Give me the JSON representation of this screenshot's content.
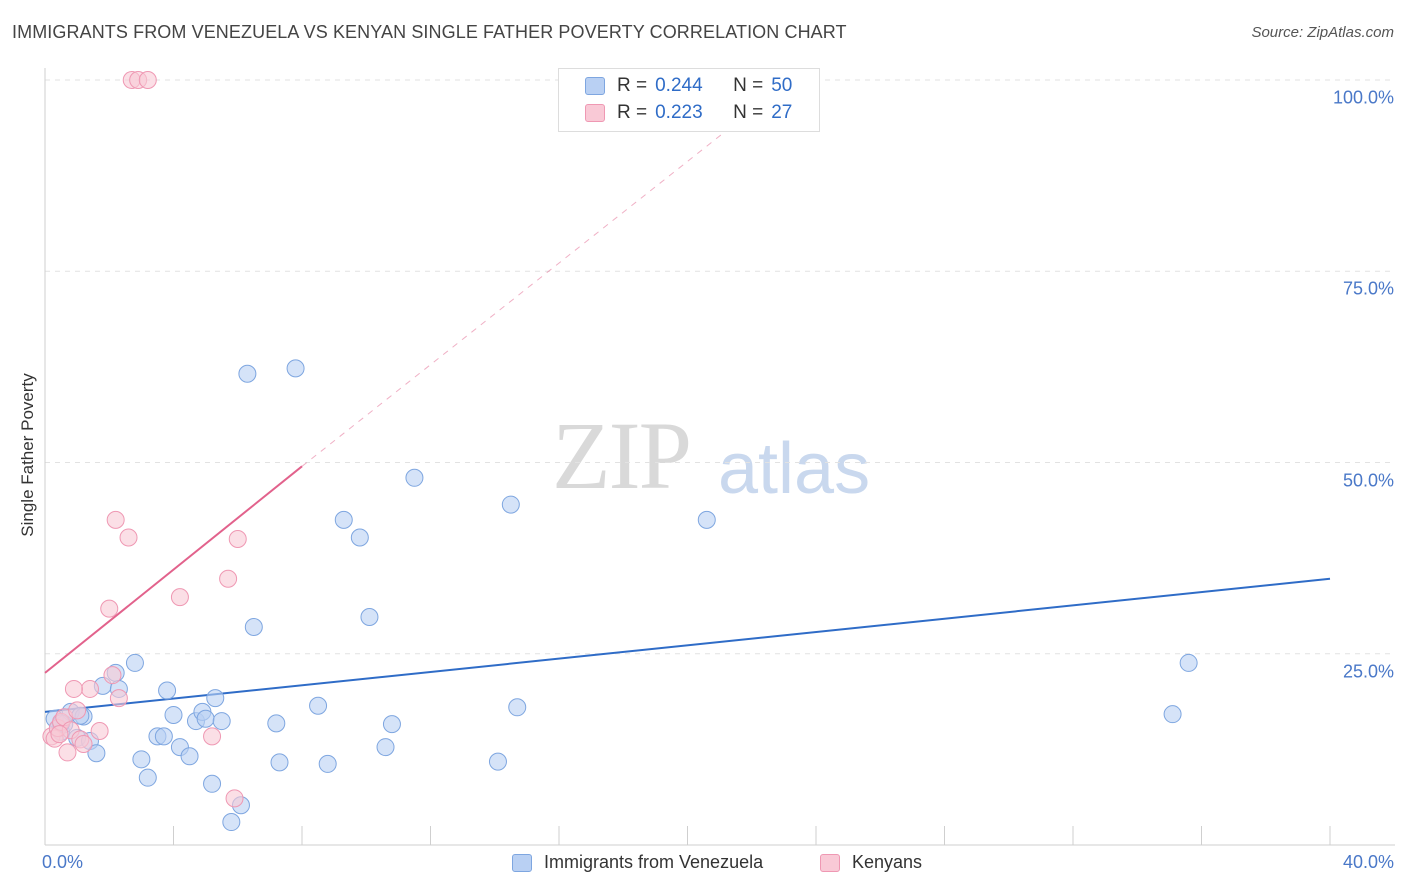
{
  "title": "IMMIGRANTS FROM VENEZUELA VS KENYAN SINGLE FATHER POVERTY CORRELATION CHART",
  "source": "Source: ZipAtlas.com",
  "watermark": {
    "zip": "ZIP",
    "atlas": "atlas"
  },
  "legend": {
    "rows": [
      {
        "r_label": "R =",
        "r_value": "0.244",
        "n_label": "N =",
        "n_value": "50"
      },
      {
        "r_label": "R =",
        "r_value": "0.223",
        "n_label": "N =",
        "n_value": "27"
      }
    ]
  },
  "colors": {
    "blue": "#2f6cc7",
    "blue_fill": "#b9d0f3",
    "pink": "#e2628c",
    "pink_fill": "#f9c9d6"
  },
  "chart_data": {
    "type": "scatter",
    "title": "IMMIGRANTS FROM VENEZUELA VS KENYAN SINGLE FATHER POVERTY CORRELATION CHART",
    "xlabel": "",
    "ylabel": "Single Father Poverty",
    "xlim": [
      0,
      40
    ],
    "ylim": [
      0,
      100
    ],
    "x_tick_labels": [
      "0.0%",
      "40.0%"
    ],
    "y_tick_labels": [
      "25.0%",
      "50.0%",
      "75.0%",
      "100.0%"
    ],
    "y_ticks": [
      25,
      50,
      75,
      100
    ],
    "grid": true,
    "series": [
      {
        "name": "Immigrants from Venezuela",
        "color": "#2f6cc7",
        "points": [
          [
            0.3,
            16.5
          ],
          [
            0.4,
            15.2
          ],
          [
            0.5,
            14.8
          ],
          [
            0.6,
            15.8
          ],
          [
            0.8,
            17.4
          ],
          [
            1.0,
            14.0
          ],
          [
            1.2,
            16.8
          ],
          [
            1.4,
            13.6
          ],
          [
            1.6,
            12.0
          ],
          [
            1.8,
            20.8
          ],
          [
            2.2,
            22.5
          ],
          [
            2.3,
            20.4
          ],
          [
            2.8,
            23.8
          ],
          [
            3.0,
            11.2
          ],
          [
            3.2,
            8.8
          ],
          [
            3.5,
            14.2
          ],
          [
            3.7,
            14.2
          ],
          [
            3.8,
            20.2
          ],
          [
            4.0,
            17.0
          ],
          [
            4.2,
            12.8
          ],
          [
            4.5,
            11.6
          ],
          [
            4.7,
            16.2
          ],
          [
            4.9,
            17.4
          ],
          [
            5.0,
            16.5
          ],
          [
            5.2,
            8.0
          ],
          [
            5.3,
            19.2
          ],
          [
            5.5,
            16.2
          ],
          [
            5.8,
            3.0
          ],
          [
            6.1,
            5.2
          ],
          [
            6.3,
            61.6
          ],
          [
            6.5,
            28.5
          ],
          [
            7.2,
            15.9
          ],
          [
            7.3,
            10.8
          ],
          [
            7.8,
            62.3
          ],
          [
            8.5,
            18.2
          ],
          [
            8.8,
            10.6
          ],
          [
            9.3,
            42.5
          ],
          [
            9.8,
            40.2
          ],
          [
            10.1,
            29.8
          ],
          [
            10.6,
            12.8
          ],
          [
            10.8,
            15.8
          ],
          [
            11.5,
            48.0
          ],
          [
            14.1,
            10.9
          ],
          [
            14.5,
            44.5
          ],
          [
            14.7,
            18.0
          ],
          [
            20.6,
            42.5
          ],
          [
            35.1,
            17.1
          ],
          [
            35.6,
            23.8
          ],
          [
            0.5,
            15.9
          ],
          [
            1.1,
            16.9
          ]
        ]
      },
      {
        "name": "Kenyans",
        "color": "#e2628c",
        "points": [
          [
            0.2,
            14.2
          ],
          [
            0.3,
            13.9
          ],
          [
            0.4,
            15.3
          ],
          [
            0.5,
            16.1
          ],
          [
            0.6,
            16.7
          ],
          [
            0.7,
            12.1
          ],
          [
            0.8,
            15.0
          ],
          [
            1.0,
            17.6
          ],
          [
            1.1,
            13.8
          ],
          [
            1.4,
            20.4
          ],
          [
            1.7,
            14.9
          ],
          [
            2.0,
            30.9
          ],
          [
            2.1,
            22.2
          ],
          [
            2.2,
            42.5
          ],
          [
            2.3,
            19.2
          ],
          [
            2.6,
            40.2
          ],
          [
            2.7,
            100.0
          ],
          [
            2.9,
            100.0
          ],
          [
            3.2,
            100.0
          ],
          [
            4.2,
            32.4
          ],
          [
            5.2,
            14.2
          ],
          [
            5.7,
            34.8
          ],
          [
            5.9,
            6.1
          ],
          [
            6.0,
            40.0
          ],
          [
            0.9,
            20.4
          ],
          [
            1.2,
            13.2
          ],
          [
            0.45,
            14.5
          ]
        ]
      }
    ],
    "trendlines": [
      {
        "series": "Immigrants from Venezuela",
        "x": [
          0,
          40
        ],
        "y": [
          17.4,
          34.8
        ],
        "style": "solid"
      },
      {
        "series": "Kenyans",
        "x": [
          0,
          8
        ],
        "y": [
          22.5,
          49.5
        ],
        "style": "solid"
      },
      {
        "series": "Kenyans",
        "x": [
          8,
          22
        ],
        "y": [
          49.5,
          96.0
        ],
        "style": "dashed"
      }
    ]
  }
}
